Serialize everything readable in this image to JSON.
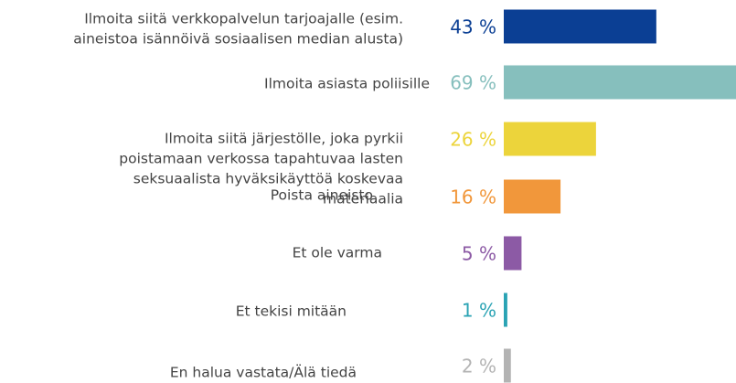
{
  "chart_data": {
    "type": "bar",
    "categories": [
      [
        "Ilmoita siitä verkkopalvelun tarjoajalle (esim.",
        "aineistoa isännöivä sosiaalisen median alusta)"
      ],
      [
        "Ilmoita asiasta poliisille"
      ],
      [
        "Ilmoita siitä järjestölle, joka pyrkii",
        "poistamaan verkossa tapahtuvaa lasten",
        "seksuaalista hyväksikäyttöä koskevaa",
        "materiaalia"
      ],
      [
        "Poista aineisto"
      ],
      [
        "Et ole varma"
      ],
      [
        "Et tekisi mitään"
      ],
      [
        "En halua vastata/Älä tiedä"
      ]
    ],
    "values": [
      43,
      69,
      26,
      16,
      5,
      1,
      2
    ],
    "value_labels": [
      "43 %",
      "69 %",
      "26 %",
      "16 %",
      "5 %",
      "1 %",
      "2 %"
    ],
    "colors": [
      "#0b3f94",
      "#86bfbd",
      "#ecd43b",
      "#f1973b",
      "#8c5aa5",
      "#2aa3b4",
      "#b3b3b3"
    ]
  }
}
